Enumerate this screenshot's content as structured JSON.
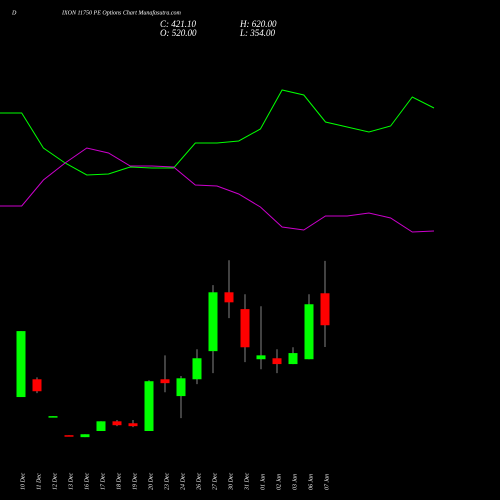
{
  "chart_data": [
    {
      "type": "line",
      "ylim": [
        0,
        250
      ],
      "series": [
        {
          "color": "#00ff00",
          "values": [
            137,
            137,
            102,
            87,
            75,
            76,
            83,
            82,
            82,
            107,
            107,
            109,
            121,
            160,
            155,
            128,
            123,
            118,
            124,
            153,
            142
          ]
        },
        {
          "color": "#cc00cc",
          "values": [
            44,
            44,
            70,
            87,
            102,
            97,
            84,
            84,
            83,
            65,
            64,
            56,
            43,
            23,
            20,
            34,
            34,
            37,
            32,
            18,
            19
          ]
        }
      ]
    },
    {
      "type": "candlestick",
      "title_prefix": "D",
      "title": "IXON 11750 PE Options Chart Munafasutra.com",
      "close_label": "C: 421.10",
      "high_label": "H: 620.00",
      "open_label": "O: 520.00",
      "low_label": "L: 354.00",
      "up_color": "#00ff00",
      "down_color": "#ff0000",
      "ylim": [
        60,
        660
      ],
      "categories": [
        "10 Dec",
        "11 Dec",
        "12 Dec",
        "13 Dec",
        "16 Dec",
        "17 Dec",
        "18 Dec",
        "19 Dec",
        "20 Dec",
        "23 Dec",
        "24 Dec",
        "26 Dec",
        "27 Dec",
        "30 Dec",
        "31 Dec",
        "01 Jan",
        "02 Jan",
        "03 Jan",
        "06 Jan",
        "07 Jan"
      ],
      "open": [
        199,
        254,
        137,
        81,
        75,
        94,
        124,
        118,
        94,
        254,
        202,
        254,
        341,
        523,
        471,
        316,
        319,
        301,
        316,
        520
      ],
      "high": [
        403,
        260,
        140,
        81,
        84,
        124,
        128,
        128,
        251,
        328,
        264,
        347,
        545,
        622,
        517,
        480,
        347,
        353,
        517,
        620
      ],
      "low": [
        199,
        211,
        137,
        78,
        75,
        94,
        109,
        106,
        94,
        214,
        134,
        239,
        273,
        443,
        307,
        285,
        273,
        301,
        316,
        354
      ],
      "close": [
        403,
        217,
        140,
        78,
        84,
        124,
        112,
        109,
        248,
        242,
        257,
        319,
        523,
        492,
        353,
        328,
        301,
        335,
        486,
        421.1
      ]
    }
  ]
}
